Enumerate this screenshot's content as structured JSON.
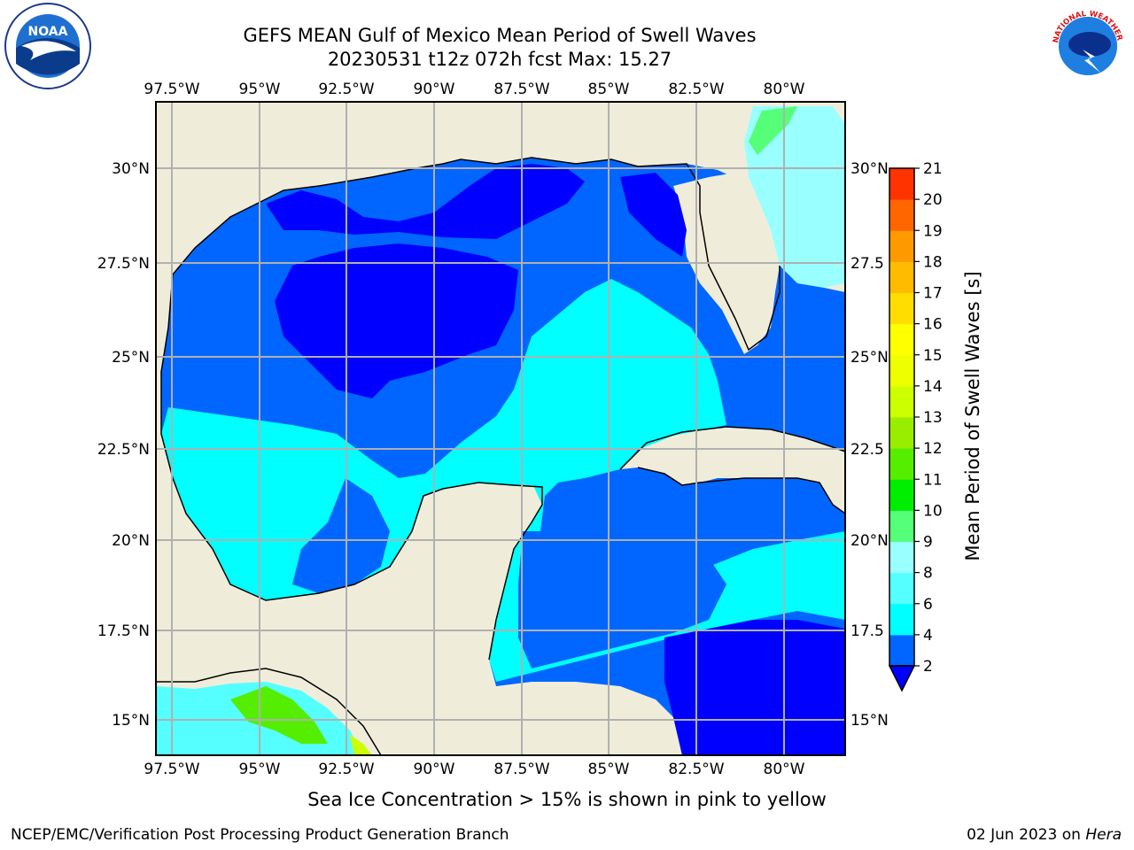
{
  "title_line1": "GEFS MEAN Gulf of Mexico Mean Period of Swell Waves",
  "title_line2": "20230531 t12z 072h fcst   Max: 15.27",
  "lon_labels": [
    "97.5°W",
    "95°W",
    "92.5°W",
    "90°W",
    "87.5°W",
    "85°W",
    "82.5°W",
    "80°W"
  ],
  "lat_labels": [
    "30°N",
    "27.5°N",
    "25°N",
    "22.5°N",
    "20°N",
    "17.5°N",
    "15°N"
  ],
  "lat_labels_right": [
    "30°N",
    "27.5",
    "25°N",
    "22.5",
    "20°N",
    "17.5",
    "15°N"
  ],
  "colorbar": {
    "title": "Mean Period of Swell Waves [s]",
    "ticks": [
      "2",
      "4",
      "6",
      "8",
      "9",
      "10",
      "11",
      "12",
      "13",
      "14",
      "15",
      "16",
      "17",
      "18",
      "19",
      "20",
      "21"
    ],
    "colors": [
      "#0066ff",
      "#00ffff",
      "#55ffff",
      "#99ffff",
      "#55ff77",
      "#00ee00",
      "#55ee00",
      "#99ee00",
      "#ccff00",
      "#eeff00",
      "#ffff00",
      "#ffdd00",
      "#ffbb00",
      "#ff9900",
      "#ff6600",
      "#ff3300",
      "#ff0000"
    ],
    "extend_color": "#0000ff"
  },
  "note": "Sea Ice Concentration > 15% is shown in pink to yellow",
  "footer_left": "NCEP/EMC/Verification Post Processing Product Generation Branch",
  "footer_date": "02 Jun 2023 on ",
  "footer_host": "Hera",
  "logos": {
    "left": "noaa-logo",
    "right": "nws-logo",
    "left_text": "NOAA",
    "right_text": "NATIONAL WEATHER SERVICE"
  },
  "colors": {
    "land": "#efedda",
    "grid": "#b0b0b0",
    "coast": "#000000"
  }
}
